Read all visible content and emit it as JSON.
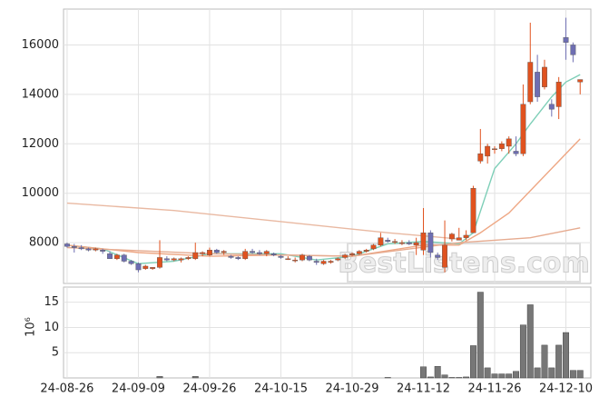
{
  "chart_data": {
    "type": "candlestick",
    "watermark": "BestListens.com",
    "up_color": "#e0521f",
    "down_color": "#6e6eb2",
    "volume_color": "#777777",
    "grid": true,
    "xlim": [
      -0.5,
      73.5
    ],
    "xticks": [
      {
        "value": 0,
        "label": "24-08-26"
      },
      {
        "value": 10,
        "label": "24-09-09"
      },
      {
        "value": 20,
        "label": "24-09-26"
      },
      {
        "value": 30,
        "label": "24-10-15"
      },
      {
        "value": 40,
        "label": "24-10-29"
      },
      {
        "value": 50,
        "label": "24-11-12"
      },
      {
        "value": 60,
        "label": "24-11-26"
      },
      {
        "value": 70,
        "label": "24-12-10"
      }
    ],
    "ylim": [
      6350,
      17450
    ],
    "yticks": [
      8000,
      10000,
      12000,
      14000,
      16000
    ],
    "ohlc": [
      [
        7950,
        8000,
        7800,
        7850
      ],
      [
        7850,
        7950,
        7600,
        7800
      ],
      [
        7800,
        7900,
        7700,
        7750
      ],
      [
        7750,
        7800,
        7650,
        7700
      ],
      [
        7700,
        7800,
        7650,
        7750
      ],
      [
        7700,
        7750,
        7550,
        7650
      ],
      [
        7550,
        7650,
        7350,
        7350
      ],
      [
        7350,
        7550,
        7300,
        7500
      ],
      [
        7500,
        7550,
        7200,
        7250
      ],
      [
        7250,
        7300,
        7100,
        7150
      ],
      [
        7150,
        7200,
        6800,
        6900
      ],
      [
        6950,
        7100,
        6900,
        7050
      ],
      [
        6950,
        7000,
        6900,
        7000
      ],
      [
        7000,
        8100,
        6950,
        7400
      ],
      [
        7350,
        7450,
        7250,
        7300
      ],
      [
        7300,
        7400,
        7250,
        7350
      ],
      [
        7300,
        7400,
        7200,
        7350
      ],
      [
        7350,
        7450,
        7300,
        7400
      ],
      [
        7350,
        8000,
        7300,
        7600
      ],
      [
        7550,
        7650,
        7450,
        7600
      ],
      [
        7500,
        7800,
        7450,
        7700
      ],
      [
        7700,
        7750,
        7550,
        7600
      ],
      [
        7600,
        7700,
        7500,
        7650
      ],
      [
        7450,
        7500,
        7350,
        7400
      ],
      [
        7400,
        7450,
        7300,
        7350
      ],
      [
        7350,
        7750,
        7300,
        7650
      ],
      [
        7650,
        7750,
        7550,
        7600
      ],
      [
        7600,
        7700,
        7500,
        7550
      ],
      [
        7550,
        7700,
        7450,
        7650
      ],
      [
        7550,
        7600,
        7450,
        7500
      ],
      [
        7450,
        7500,
        7350,
        7400
      ],
      [
        7350,
        7450,
        7300,
        7350
      ],
      [
        7300,
        7400,
        7200,
        7300
      ],
      [
        7300,
        7550,
        7250,
        7500
      ],
      [
        7450,
        7500,
        7250,
        7300
      ],
      [
        7250,
        7350,
        7100,
        7200
      ],
      [
        7150,
        7300,
        7100,
        7250
      ],
      [
        7200,
        7300,
        7150,
        7250
      ],
      [
        7300,
        7400,
        7250,
        7350
      ],
      [
        7400,
        7550,
        7350,
        7500
      ],
      [
        7500,
        7600,
        7450,
        7550
      ],
      [
        7550,
        7700,
        7500,
        7650
      ],
      [
        7650,
        7750,
        7600,
        7700
      ],
      [
        7750,
        7950,
        7700,
        7900
      ],
      [
        7900,
        8400,
        7850,
        8200
      ],
      [
        8100,
        8200,
        8000,
        8050
      ],
      [
        8050,
        8150,
        7950,
        8050
      ],
      [
        8000,
        8100,
        7900,
        8000
      ],
      [
        8000,
        8100,
        7900,
        7950
      ],
      [
        7900,
        8200,
        7500,
        8000
      ],
      [
        7700,
        9400,
        7500,
        8400
      ],
      [
        8400,
        8500,
        7400,
        7600
      ],
      [
        7500,
        7600,
        7300,
        7400
      ],
      [
        7000,
        8900,
        6800,
        7900
      ],
      [
        8150,
        8400,
        8050,
        8350
      ],
      [
        8100,
        8600,
        8100,
        8200
      ],
      [
        8200,
        8500,
        8100,
        8300
      ],
      [
        8400,
        10300,
        8400,
        10200
      ],
      [
        11300,
        12600,
        11200,
        11600
      ],
      [
        11500,
        12000,
        11200,
        11900
      ],
      [
        11800,
        11900,
        11600,
        11800
      ],
      [
        11800,
        12100,
        11700,
        12000
      ],
      [
        11900,
        12300,
        11600,
        12200
      ],
      [
        11700,
        12300,
        11500,
        11600
      ],
      [
        11600,
        14400,
        11500,
        13600
      ],
      [
        13700,
        16900,
        13600,
        15300
      ],
      [
        14900,
        15600,
        13700,
        13900
      ],
      [
        14300,
        15400,
        14200,
        15100
      ],
      [
        13600,
        13800,
        13100,
        13400
      ],
      [
        13500,
        14700,
        13000,
        14500
      ],
      [
        16300,
        17100,
        15400,
        16100
      ],
      [
        16000,
        16100,
        15300,
        15600
      ],
      [
        14500,
        14600,
        14000,
        14600
      ]
    ],
    "lines": [
      {
        "color": "#7fcfb8",
        "x": [
          0,
          5,
          10,
          15,
          20,
          25,
          30,
          35,
          40,
          45,
          50,
          55,
          57,
          60,
          63,
          65,
          68,
          70,
          72
        ],
        "values": [
          7900,
          7750,
          7150,
          7250,
          7550,
          7550,
          7550,
          7300,
          7450,
          7950,
          8050,
          7950,
          8400,
          11000,
          12000,
          12800,
          13900,
          14500,
          14800
        ]
      },
      {
        "color": "#eea784",
        "x": [
          0,
          10,
          20,
          30,
          40,
          50,
          55,
          58,
          62,
          65,
          68,
          72
        ],
        "values": [
          7900,
          7600,
          7450,
          7500,
          7450,
          7900,
          7900,
          8400,
          9200,
          10100,
          11000,
          12200
        ]
      },
      {
        "color": "#e6ab90",
        "x": [
          0,
          20,
          40,
          55,
          60,
          65,
          72
        ],
        "values": [
          7800,
          7550,
          7450,
          8000,
          8100,
          8200,
          8600
        ]
      },
      {
        "color": "#e9b9a2",
        "x": [
          0,
          15,
          30,
          45,
          55
        ],
        "values": [
          9600,
          9300,
          8850,
          8400,
          8150
        ]
      }
    ],
    "volume_label": "10⁶",
    "volume_ylim": [
      0,
      18
    ],
    "volume_yticks": [
      5,
      10,
      15
    ],
    "volume": [
      0,
      0,
      0,
      0,
      0,
      0,
      0,
      0,
      0,
      0,
      0,
      0,
      0,
      0.3,
      0,
      0,
      0,
      0,
      0.3,
      0,
      0,
      0,
      0,
      0,
      0,
      0,
      0,
      0,
      0,
      0,
      0,
      0,
      0,
      0,
      0,
      0,
      0,
      0,
      0,
      0,
      0,
      0,
      0,
      0,
      0,
      0.1,
      0,
      0,
      0,
      0,
      2.2,
      0.2,
      2.3,
      0.6,
      0.1,
      0.1,
      0.2,
      6.4,
      17,
      2,
      0.8,
      0.8,
      0.8,
      1.3,
      10.5,
      14.5,
      2,
      6.5,
      2,
      6.5,
      9,
      1.5,
      1.5
    ]
  }
}
